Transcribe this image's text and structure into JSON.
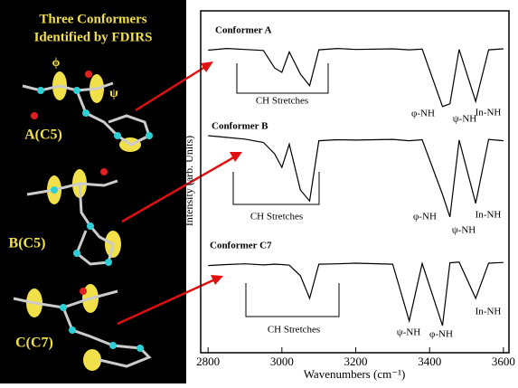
{
  "left_panel": {
    "title_line1": "Three Conformers",
    "title_line2": "Identified by FDIRS",
    "phi": "ϕ",
    "psi": "ψ",
    "labels": [
      "A(C5)",
      "B(C5)",
      "C(C7)"
    ]
  },
  "chart_data": {
    "type": "line",
    "xlabel": "Wavenumbers (cm⁻¹)",
    "ylabel": "Intensity (arb. Units)",
    "x": [
      2800,
      2850,
      2900,
      2950,
      2980,
      3000,
      3020,
      3050,
      3075,
      3100,
      3150,
      3200,
      3300,
      3345,
      3380,
      3435,
      3455,
      3480,
      3525,
      3560,
      3600
    ],
    "series": [
      {
        "name": "Conformer A",
        "color": "#000000",
        "values": [
          88.5,
          89,
          88.7,
          88.4,
          83.3,
          82,
          88,
          81.5,
          78.1,
          88.6,
          89,
          88.7,
          88.9,
          88.6,
          88.8,
          72,
          72.8,
          88.7,
          73.5,
          88.6,
          88.9
        ]
      },
      {
        "name": "Conformer B",
        "color": "#000000",
        "values": [
          63.5,
          63,
          62.5,
          61.5,
          58.2,
          54.2,
          61,
          47.6,
          44.4,
          62,
          62.3,
          62.2,
          62.4,
          62,
          62.3,
          46.3,
          39.7,
          62.2,
          43.7,
          62.4,
          62
        ]
      },
      {
        "name": "Conformer C7",
        "color": "#000000",
        "values": [
          25.5,
          25.8,
          26,
          25.7,
          25.9,
          25.8,
          25.6,
          22.5,
          15.9,
          25.9,
          26,
          26.2,
          25.9,
          9.3,
          26.1,
          7.9,
          26.3,
          26.5,
          15.9,
          26.2,
          26.4
        ]
      }
    ],
    "xlim": [
      2780,
      3615
    ],
    "xticks": [
      2800,
      3000,
      3200,
      3400,
      3600
    ],
    "ylim": [
      0,
      100
    ],
    "annotations": [
      "CH Stretches",
      "φ-NH",
      "ψ-NH",
      "In-NH",
      "CH Stretches",
      "φ-NH",
      "ψ-NH",
      "In-NH",
      "CH Stretches",
      "ψ-NH",
      "φ-NH",
      "In-NH"
    ]
  }
}
